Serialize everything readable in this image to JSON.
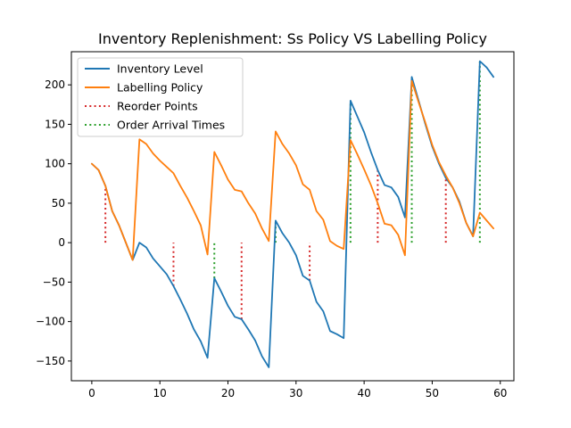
{
  "chart_data": {
    "type": "line",
    "title": "Inventory Replenishment: Ss Policy VS Labelling Policy",
    "xlabel": "",
    "ylabel": "",
    "xlim": [
      -3,
      62
    ],
    "ylim": [
      -175,
      242
    ],
    "xticks": [
      0,
      10,
      20,
      30,
      40,
      50,
      60
    ],
    "yticks": [
      -150,
      -100,
      -50,
      0,
      50,
      100,
      150,
      200
    ],
    "grid": false,
    "legend_position": "upper-left",
    "series": [
      {
        "name": "Inventory Level",
        "color": "#1f77b4",
        "x": [
          0,
          1,
          2,
          3,
          4,
          5,
          6,
          7,
          8,
          9,
          10,
          11,
          12,
          13,
          14,
          15,
          16,
          17,
          18,
          19,
          20,
          21,
          22,
          23,
          24,
          25,
          26,
          27,
          28,
          29,
          30,
          31,
          32,
          33,
          34,
          35,
          36,
          37,
          38,
          39,
          40,
          41,
          42,
          43,
          44,
          45,
          46,
          47,
          48,
          49,
          50,
          51,
          52,
          53,
          54,
          55,
          56,
          57,
          58,
          59
        ],
        "y": [
          100,
          92,
          72,
          40,
          22,
          0,
          -22,
          0,
          -6,
          -20,
          -30,
          -40,
          -55,
          -72,
          -90,
          -110,
          -125,
          -146,
          -45,
          -62,
          -80,
          -94,
          -97,
          -110,
          -124,
          -144,
          -158,
          28,
          12,
          0,
          -16,
          -42,
          -48,
          -75,
          -87,
          -112,
          -116,
          -121,
          180,
          160,
          140,
          115,
          92,
          73,
          70,
          58,
          32,
          210,
          180,
          150,
          122,
          100,
          82,
          70,
          52,
          25,
          8,
          230,
          222,
          210
        ]
      },
      {
        "name": "Labelling Policy",
        "color": "#ff7f0e",
        "x": [
          0,
          1,
          2,
          3,
          4,
          5,
          6,
          7,
          8,
          9,
          10,
          11,
          12,
          13,
          14,
          15,
          16,
          17,
          18,
          19,
          20,
          21,
          22,
          23,
          24,
          25,
          26,
          27,
          28,
          29,
          30,
          31,
          32,
          33,
          34,
          35,
          36,
          37,
          38,
          39,
          40,
          41,
          42,
          43,
          44,
          45,
          46,
          47,
          48,
          49,
          50,
          51,
          52,
          53,
          54,
          55,
          56,
          57,
          58,
          59
        ],
        "y": [
          100,
          92,
          72,
          40,
          22,
          0,
          -22,
          131,
          125,
          113,
          104,
          96,
          88,
          72,
          57,
          40,
          22,
          -15,
          115,
          98,
          80,
          67,
          65,
          50,
          37,
          18,
          2,
          141,
          125,
          113,
          98,
          74,
          67,
          40,
          29,
          2,
          -4,
          -8,
          130,
          112,
          93,
          73,
          50,
          24,
          22,
          10,
          -16,
          205,
          178,
          152,
          124,
          102,
          85,
          70,
          50,
          25,
          8,
          38,
          28,
          18
        ]
      }
    ],
    "vlines": [
      {
        "name": "Reorder Points",
        "color": "#d62728",
        "lines": [
          {
            "x": 2,
            "ymin": 0,
            "ymax": 72
          },
          {
            "x": 12,
            "ymin": -55,
            "ymax": 0
          },
          {
            "x": 22,
            "ymin": -97,
            "ymax": 0
          },
          {
            "x": 32,
            "ymin": -48,
            "ymax": 0
          },
          {
            "x": 42,
            "ymin": 0,
            "ymax": 92
          },
          {
            "x": 52,
            "ymin": 0,
            "ymax": 82
          }
        ]
      },
      {
        "name": "Order Arrival Times",
        "color": "#2ca02c",
        "lines": [
          {
            "x": 18,
            "ymin": -45,
            "ymax": 0
          },
          {
            "x": 27,
            "ymin": 0,
            "ymax": 28
          },
          {
            "x": 38,
            "ymin": 0,
            "ymax": 180
          },
          {
            "x": 47,
            "ymin": 0,
            "ymax": 210
          },
          {
            "x": 57,
            "ymin": 0,
            "ymax": 230
          }
        ]
      }
    ]
  }
}
